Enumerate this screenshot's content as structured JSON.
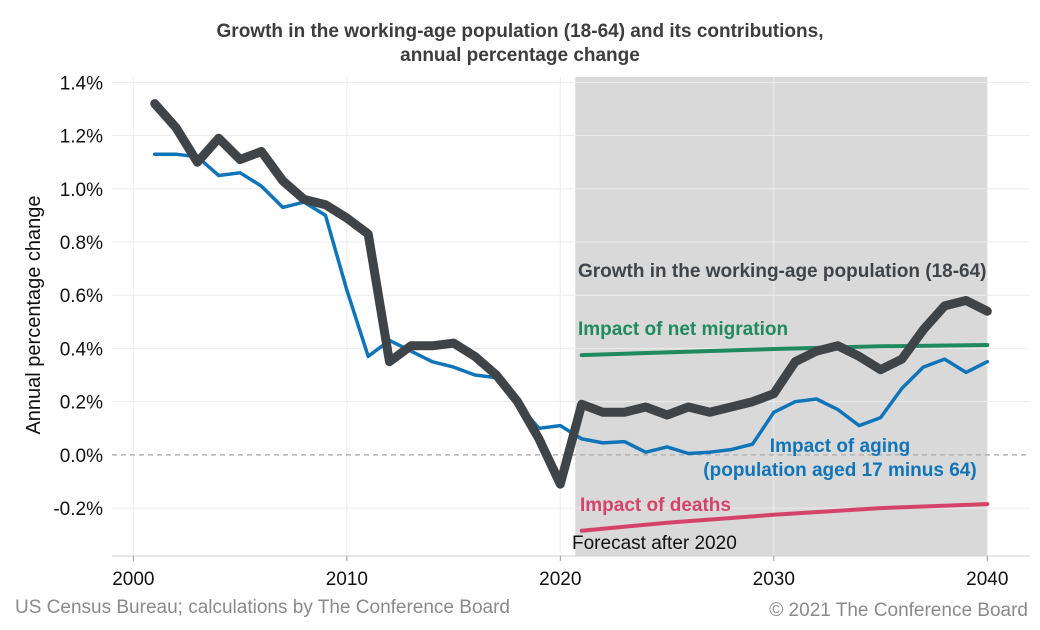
{
  "colors": {
    "growth": "#3f4449",
    "aging": "#0f75b8",
    "migration": "#1f8a5f",
    "deaths": "#d6436a",
    "shade": "#d9d9d9"
  },
  "footer": {
    "source": "US Census Bureau; calculations by The Conference Board",
    "copyright": "© 2021 The Conference Board"
  },
  "chart_data": {
    "type": "line",
    "title_lines": [
      "Growth in the working-age population (18-64) and its contributions,",
      "annual percentage change"
    ],
    "xlabel": "",
    "ylabel": "Annual percentage change",
    "xlim": [
      1999,
      2042
    ],
    "ylim": [
      -0.38,
      1.42
    ],
    "x_ticks": [
      2000,
      2010,
      2020,
      2030,
      2040
    ],
    "y_ticks": [
      {
        "value": 1.4,
        "label": "1.4%"
      },
      {
        "value": 1.2,
        "label": "1.2%"
      },
      {
        "value": 1.0,
        "label": "1.0%"
      },
      {
        "value": 0.8,
        "label": "0.8%"
      },
      {
        "value": 0.6,
        "label": "0.6%"
      },
      {
        "value": 0.4,
        "label": "0.4%"
      },
      {
        "value": 0.2,
        "label": "0.2%"
      },
      {
        "value": 0.0,
        "label": "0.0%"
      },
      {
        "value": -0.2,
        "label": "-0.2%"
      }
    ],
    "zero_line": "dashed",
    "forecast_shading": {
      "from": 2020.7,
      "to": 2040,
      "label": "Forecast after 2020"
    },
    "series": [
      {
        "key": "aging",
        "label_lines": [
          "Impact of aging",
          "(population aged 17 minus 64)"
        ],
        "x": [
          2001,
          2002,
          2003,
          2004,
          2005,
          2006,
          2007,
          2008,
          2009,
          2010,
          2011,
          2012,
          2013,
          2014,
          2015,
          2016,
          2017,
          2018,
          2019,
          2020,
          2021,
          2022,
          2023,
          2024,
          2025,
          2026,
          2027,
          2028,
          2029,
          2030,
          2031,
          2032,
          2033,
          2034,
          2035,
          2036,
          2037,
          2038,
          2039,
          2040
        ],
        "y": [
          1.13,
          1.13,
          1.12,
          1.05,
          1.06,
          1.01,
          0.93,
          0.95,
          0.9,
          0.62,
          0.37,
          0.43,
          0.39,
          0.35,
          0.33,
          0.3,
          0.29,
          0.19,
          0.1,
          0.11,
          0.06,
          0.045,
          0.05,
          0.01,
          0.03,
          0.005,
          0.01,
          0.02,
          0.04,
          0.16,
          0.2,
          0.21,
          0.17,
          0.11,
          0.14,
          0.25,
          0.33,
          0.36,
          0.31,
          0.35
        ]
      },
      {
        "key": "growth",
        "label_lines": [
          "Growth in the working-age population (18-64)"
        ],
        "x": [
          2001,
          2002,
          2003,
          2004,
          2005,
          2006,
          2007,
          2008,
          2009,
          2010,
          2011,
          2012,
          2013,
          2014,
          2015,
          2016,
          2017,
          2018,
          2019,
          2020,
          2021,
          2022,
          2023,
          2024,
          2025,
          2026,
          2027,
          2028,
          2029,
          2030,
          2031,
          2032,
          2033,
          2034,
          2035,
          2036,
          2037,
          2038,
          2039,
          2040
        ],
        "y": [
          1.32,
          1.23,
          1.1,
          1.19,
          1.11,
          1.14,
          1.03,
          0.96,
          0.94,
          0.89,
          0.83,
          0.35,
          0.41,
          0.41,
          0.42,
          0.37,
          0.3,
          0.2,
          0.06,
          -0.11,
          0.19,
          0.16,
          0.16,
          0.18,
          0.15,
          0.18,
          0.16,
          0.18,
          0.2,
          0.23,
          0.35,
          0.39,
          0.41,
          0.37,
          0.32,
          0.36,
          0.47,
          0.56,
          0.58,
          0.54
        ]
      },
      {
        "key": "migration",
        "label_lines": [
          "Impact of net migration"
        ],
        "x": [
          2021,
          2025,
          2030,
          2035,
          2040
        ],
        "y": [
          0.375,
          0.385,
          0.398,
          0.408,
          0.413
        ]
      },
      {
        "key": "deaths",
        "label_lines": [
          "Impact of deaths"
        ],
        "x": [
          2021,
          2025,
          2030,
          2035,
          2040
        ],
        "y": [
          -0.285,
          -0.255,
          -0.225,
          -0.2,
          -0.185
        ]
      }
    ]
  }
}
